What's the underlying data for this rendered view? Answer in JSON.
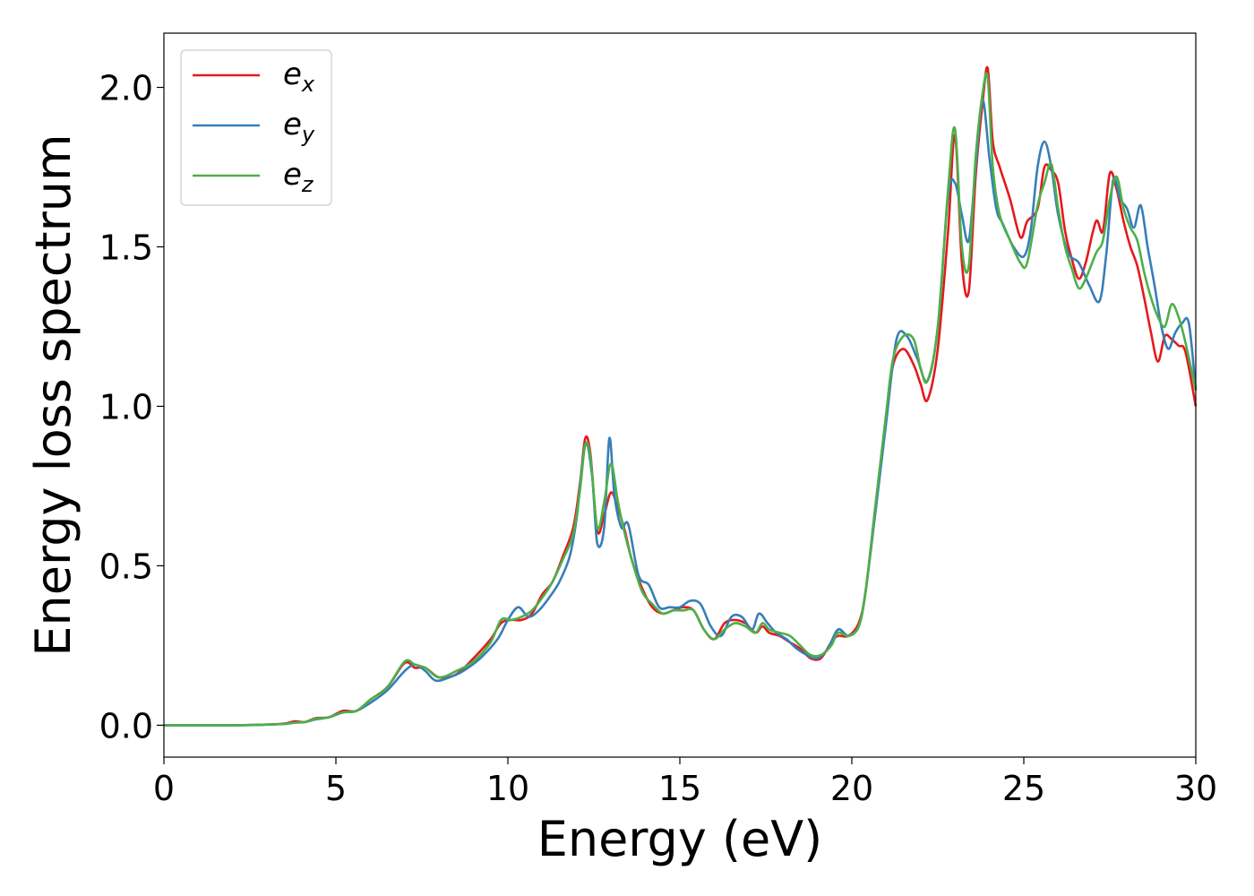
{
  "chart_data": {
    "type": "line",
    "xlabel": "Energy (eV)",
    "ylabel": "Energy loss spectrum",
    "xlim": [
      0,
      30
    ],
    "ylim": [
      -0.1,
      2.17
    ],
    "xticks": [
      0,
      5,
      10,
      15,
      20,
      25,
      30
    ],
    "xtick_labels": [
      "0",
      "5",
      "10",
      "15",
      "20",
      "25",
      "30"
    ],
    "yticks": [
      0.0,
      0.5,
      1.0,
      1.5,
      2.0
    ],
    "ytick_labels": [
      "0.0",
      "0.5",
      "1.0",
      "1.5",
      "2.0"
    ],
    "grid": false,
    "legend_position": "top-left",
    "series": [
      {
        "name": "e_x",
        "label_main": "e",
        "label_sub": "x",
        "color": "#e41a1c",
        "x": [
          0,
          2,
          3,
          3.5,
          3.8,
          4.1,
          4.4,
          4.8,
          5.2,
          5.6,
          6.0,
          6.5,
          7.0,
          7.3,
          7.6,
          8.0,
          8.5,
          9.0,
          9.5,
          9.8,
          10.1,
          10.4,
          10.7,
          11.0,
          11.3,
          11.6,
          11.9,
          12.1,
          12.25,
          12.4,
          12.6,
          12.8,
          13.0,
          13.2,
          13.4,
          13.6,
          13.9,
          14.2,
          14.5,
          14.8,
          15.1,
          15.4,
          15.7,
          16.0,
          16.3,
          16.6,
          16.9,
          17.2,
          17.4,
          17.6,
          17.9,
          18.2,
          18.5,
          18.8,
          19.1,
          19.4,
          19.6,
          19.9,
          20.2,
          20.4,
          20.7,
          21.0,
          21.2,
          21.5,
          21.8,
          22.0,
          22.2,
          22.5,
          22.8,
          23.0,
          23.2,
          23.4,
          23.6,
          23.8,
          23.95,
          24.1,
          24.3,
          24.6,
          24.9,
          25.1,
          25.4,
          25.6,
          25.8,
          26.0,
          26.2,
          26.4,
          26.6,
          26.8,
          27.1,
          27.3,
          27.5,
          27.7,
          27.9,
          28.1,
          28.3,
          28.5,
          28.7,
          28.9,
          29.1,
          29.3,
          29.5,
          29.7,
          30.0
        ],
        "y": [
          0,
          0,
          0.002,
          0.005,
          0.012,
          0.01,
          0.022,
          0.025,
          0.045,
          0.045,
          0.08,
          0.12,
          0.195,
          0.18,
          0.18,
          0.15,
          0.16,
          0.21,
          0.27,
          0.32,
          0.33,
          0.33,
          0.35,
          0.41,
          0.45,
          0.53,
          0.62,
          0.76,
          0.9,
          0.85,
          0.61,
          0.66,
          0.73,
          0.68,
          0.61,
          0.52,
          0.43,
          0.37,
          0.35,
          0.36,
          0.37,
          0.36,
          0.3,
          0.27,
          0.32,
          0.33,
          0.32,
          0.29,
          0.31,
          0.29,
          0.28,
          0.26,
          0.24,
          0.21,
          0.21,
          0.26,
          0.28,
          0.28,
          0.32,
          0.42,
          0.7,
          0.97,
          1.13,
          1.18,
          1.13,
          1.07,
          1.02,
          1.18,
          1.55,
          1.85,
          1.45,
          1.36,
          1.72,
          1.95,
          2.06,
          1.83,
          1.75,
          1.65,
          1.53,
          1.58,
          1.62,
          1.75,
          1.74,
          1.7,
          1.55,
          1.46,
          1.4,
          1.45,
          1.58,
          1.55,
          1.73,
          1.68,
          1.58,
          1.5,
          1.44,
          1.34,
          1.23,
          1.14,
          1.22,
          1.21,
          1.19,
          1.17,
          1.0
        ]
      },
      {
        "name": "e_y",
        "label_main": "e",
        "label_sub": "y",
        "color": "#377eb8",
        "x": [
          0,
          2,
          3,
          3.5,
          3.8,
          4.1,
          4.4,
          4.8,
          5.2,
          5.6,
          6.0,
          6.5,
          7.0,
          7.3,
          7.6,
          7.9,
          8.3,
          8.7,
          9.2,
          9.7,
          10.0,
          10.3,
          10.6,
          10.9,
          11.2,
          11.5,
          11.8,
          12.0,
          12.25,
          12.45,
          12.6,
          12.8,
          12.95,
          13.1,
          13.3,
          13.5,
          13.8,
          14.1,
          14.4,
          14.7,
          15.0,
          15.3,
          15.6,
          15.9,
          16.2,
          16.5,
          16.8,
          17.1,
          17.3,
          17.55,
          17.8,
          18.1,
          18.4,
          18.7,
          19.0,
          19.3,
          19.6,
          19.9,
          20.2,
          20.4,
          20.7,
          21.0,
          21.3,
          21.6,
          21.9,
          22.2,
          22.5,
          22.8,
          23.0,
          23.2,
          23.4,
          23.6,
          23.8,
          24.0,
          24.2,
          24.4,
          24.7,
          25.0,
          25.2,
          25.4,
          25.6,
          25.8,
          26.0,
          26.3,
          26.6,
          26.9,
          27.2,
          27.4,
          27.6,
          27.8,
          28.0,
          28.2,
          28.4,
          28.6,
          28.8,
          29.0,
          29.2,
          29.4,
          29.6,
          29.8,
          30.0
        ],
        "y": [
          0,
          0,
          0.002,
          0.004,
          0.008,
          0.01,
          0.018,
          0.025,
          0.04,
          0.045,
          0.07,
          0.11,
          0.17,
          0.19,
          0.17,
          0.14,
          0.15,
          0.17,
          0.21,
          0.27,
          0.33,
          0.37,
          0.34,
          0.36,
          0.4,
          0.45,
          0.53,
          0.65,
          0.88,
          0.78,
          0.57,
          0.62,
          0.9,
          0.72,
          0.62,
          0.63,
          0.47,
          0.44,
          0.37,
          0.37,
          0.37,
          0.39,
          0.38,
          0.31,
          0.28,
          0.34,
          0.34,
          0.3,
          0.35,
          0.32,
          0.29,
          0.27,
          0.24,
          0.22,
          0.21,
          0.24,
          0.3,
          0.28,
          0.31,
          0.42,
          0.68,
          0.95,
          1.21,
          1.22,
          1.15,
          1.08,
          1.25,
          1.66,
          1.7,
          1.6,
          1.52,
          1.75,
          1.96,
          1.78,
          1.62,
          1.57,
          1.5,
          1.47,
          1.55,
          1.75,
          1.83,
          1.75,
          1.6,
          1.48,
          1.45,
          1.38,
          1.33,
          1.48,
          1.71,
          1.65,
          1.62,
          1.56,
          1.63,
          1.5,
          1.38,
          1.25,
          1.18,
          1.23,
          1.26,
          1.26,
          1.05
        ]
      },
      {
        "name": "e_z",
        "label_main": "e",
        "label_sub": "z",
        "color": "#4daf4a",
        "x": [
          0,
          2,
          3,
          3.5,
          3.8,
          4.1,
          4.4,
          4.8,
          5.2,
          5.6,
          6.0,
          6.5,
          7.0,
          7.3,
          7.6,
          8.0,
          8.5,
          9.0,
          9.5,
          9.8,
          10.1,
          10.4,
          10.7,
          11.0,
          11.3,
          11.6,
          11.9,
          12.1,
          12.25,
          12.4,
          12.6,
          12.8,
          13.0,
          13.2,
          13.4,
          13.6,
          13.9,
          14.2,
          14.5,
          14.8,
          15.1,
          15.4,
          15.7,
          16.0,
          16.3,
          16.6,
          16.9,
          17.2,
          17.4,
          17.6,
          17.9,
          18.2,
          18.5,
          18.8,
          19.1,
          19.4,
          19.6,
          19.9,
          20.2,
          20.4,
          20.7,
          21.0,
          21.2,
          21.5,
          21.8,
          22.0,
          22.2,
          22.5,
          22.8,
          23.0,
          23.2,
          23.4,
          23.6,
          23.8,
          23.95,
          24.1,
          24.3,
          24.6,
          24.9,
          25.1,
          25.4,
          25.6,
          25.8,
          26.0,
          26.2,
          26.4,
          26.6,
          26.8,
          27.1,
          27.3,
          27.5,
          27.7,
          27.9,
          28.1,
          28.3,
          28.5,
          28.7,
          28.9,
          29.1,
          29.3,
          29.5,
          29.7,
          30.0
        ],
        "y": [
          0,
          0,
          0.002,
          0.004,
          0.008,
          0.01,
          0.02,
          0.025,
          0.04,
          0.045,
          0.08,
          0.12,
          0.2,
          0.19,
          0.18,
          0.15,
          0.17,
          0.2,
          0.26,
          0.33,
          0.33,
          0.34,
          0.36,
          0.4,
          0.45,
          0.52,
          0.6,
          0.74,
          0.88,
          0.84,
          0.62,
          0.7,
          0.82,
          0.7,
          0.6,
          0.52,
          0.42,
          0.38,
          0.35,
          0.36,
          0.36,
          0.36,
          0.3,
          0.27,
          0.3,
          0.32,
          0.31,
          0.29,
          0.32,
          0.3,
          0.29,
          0.28,
          0.25,
          0.22,
          0.22,
          0.25,
          0.29,
          0.28,
          0.31,
          0.42,
          0.7,
          0.98,
          1.15,
          1.22,
          1.21,
          1.12,
          1.08,
          1.25,
          1.68,
          1.87,
          1.5,
          1.44,
          1.78,
          1.98,
          2.03,
          1.75,
          1.6,
          1.52,
          1.45,
          1.45,
          1.63,
          1.7,
          1.76,
          1.62,
          1.5,
          1.43,
          1.37,
          1.4,
          1.48,
          1.52,
          1.65,
          1.72,
          1.62,
          1.56,
          1.52,
          1.42,
          1.34,
          1.28,
          1.25,
          1.32,
          1.28,
          1.2,
          1.05
        ]
      }
    ]
  }
}
